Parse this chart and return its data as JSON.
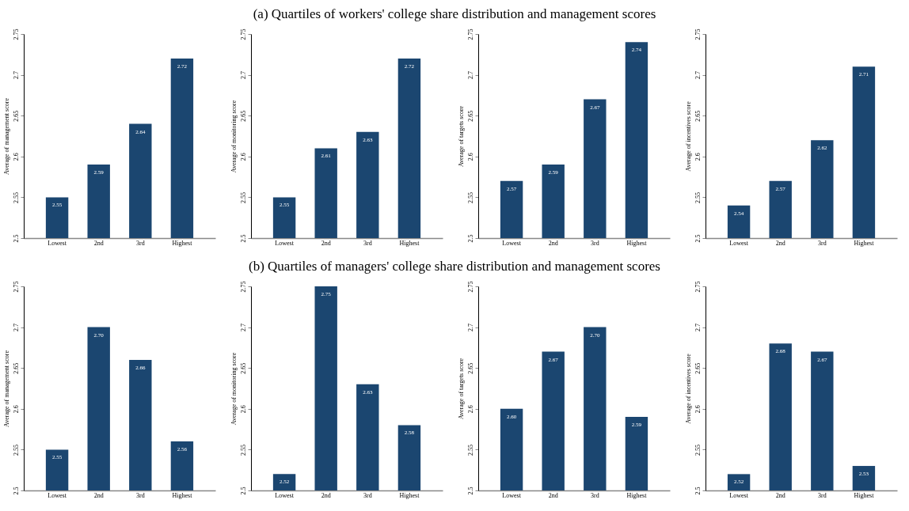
{
  "chart_data": [
    {
      "type": "other",
      "title": "(a) Quartiles of workers' college share distribution and management scores"
    },
    {
      "type": "bar",
      "ylabel": "Average of management score",
      "categories": [
        "Lowest",
        "2nd",
        "3rd",
        "Highest"
      ],
      "values": [
        2.55,
        2.59,
        2.64,
        2.72
      ],
      "value_labels": [
        "2.55",
        "2.59",
        "2.64",
        "2.72"
      ],
      "color": "#1b4670",
      "ylim": [
        2.5,
        2.75
      ],
      "yticks": [
        2.5,
        2.55,
        2.6,
        2.65,
        2.7,
        2.75
      ],
      "grid": false
    },
    {
      "type": "bar",
      "ylabel": "Average of monitoring score",
      "categories": [
        "Lowest",
        "2nd",
        "3rd",
        "Highest"
      ],
      "values": [
        2.55,
        2.61,
        2.63,
        2.72
      ],
      "value_labels": [
        "2.55",
        "2.61",
        "2.63",
        "2.72"
      ],
      "color": "#1b4670",
      "ylim": [
        2.5,
        2.75
      ],
      "yticks": [
        2.5,
        2.55,
        2.6,
        2.65,
        2.7,
        2.75
      ],
      "grid": false
    },
    {
      "type": "bar",
      "ylabel": "Average of targets score",
      "categories": [
        "Lowest",
        "2nd",
        "3rd",
        "Highest"
      ],
      "values": [
        2.57,
        2.59,
        2.67,
        2.74
      ],
      "value_labels": [
        "2.57",
        "2.59",
        "2.67",
        "2.74"
      ],
      "color": "#1b4670",
      "ylim": [
        2.5,
        2.75
      ],
      "yticks": [
        2.5,
        2.55,
        2.6,
        2.65,
        2.7,
        2.75
      ],
      "grid": false
    },
    {
      "type": "bar",
      "ylabel": "Average of incentives score",
      "categories": [
        "Lowest",
        "2nd",
        "3rd",
        "Highest"
      ],
      "values": [
        2.54,
        2.57,
        2.62,
        2.71
      ],
      "value_labels": [
        "2.54",
        "2.57",
        "2.62",
        "2.71"
      ],
      "color": "#1b4670",
      "ylim": [
        2.5,
        2.75
      ],
      "yticks": [
        2.5,
        2.55,
        2.6,
        2.65,
        2.7,
        2.75
      ],
      "grid": false
    },
    {
      "type": "other",
      "title": "(b) Quartiles of managers' college share distribution and management scores"
    },
    {
      "type": "bar",
      "ylabel": "Average of management score",
      "categories": [
        "Lowest",
        "2nd",
        "3rd",
        "Highest"
      ],
      "values": [
        2.55,
        2.7,
        2.66,
        2.56
      ],
      "value_labels": [
        "2.55",
        "2.70",
        "2.66",
        "2.56"
      ],
      "color": "#1b4670",
      "ylim": [
        2.5,
        2.75
      ],
      "yticks": [
        2.5,
        2.55,
        2.6,
        2.65,
        2.7,
        2.75
      ],
      "grid": false
    },
    {
      "type": "bar",
      "ylabel": "Average of monitoring score",
      "categories": [
        "Lowest",
        "2nd",
        "3rd",
        "Highest"
      ],
      "values": [
        2.52,
        2.75,
        2.63,
        2.58
      ],
      "value_labels": [
        "2.52",
        "2.75",
        "2.63",
        "2.58"
      ],
      "color": "#1b4670",
      "ylim": [
        2.5,
        2.75
      ],
      "yticks": [
        2.5,
        2.55,
        2.6,
        2.65,
        2.7,
        2.75
      ],
      "grid": false
    },
    {
      "type": "bar",
      "ylabel": "Average of targets score",
      "categories": [
        "Lowest",
        "2nd",
        "3rd",
        "Highest"
      ],
      "values": [
        2.6,
        2.67,
        2.7,
        2.59
      ],
      "value_labels": [
        "2.60",
        "2.67",
        "2.70",
        "2.59"
      ],
      "color": "#1b4670",
      "ylim": [
        2.5,
        2.75
      ],
      "yticks": [
        2.5,
        2.55,
        2.6,
        2.65,
        2.7,
        2.75
      ],
      "grid": false
    },
    {
      "type": "bar",
      "ylabel": "Average of incentives score",
      "categories": [
        "Lowest",
        "2nd",
        "3rd",
        "Highest"
      ],
      "values": [
        2.52,
        2.68,
        2.67,
        2.53
      ],
      "value_labels": [
        "2.52",
        "2.68",
        "2.67",
        "2.53"
      ],
      "color": "#1b4670",
      "ylim": [
        2.5,
        2.75
      ],
      "yticks": [
        2.5,
        2.55,
        2.6,
        2.65,
        2.7,
        2.75
      ],
      "grid": false
    }
  ]
}
